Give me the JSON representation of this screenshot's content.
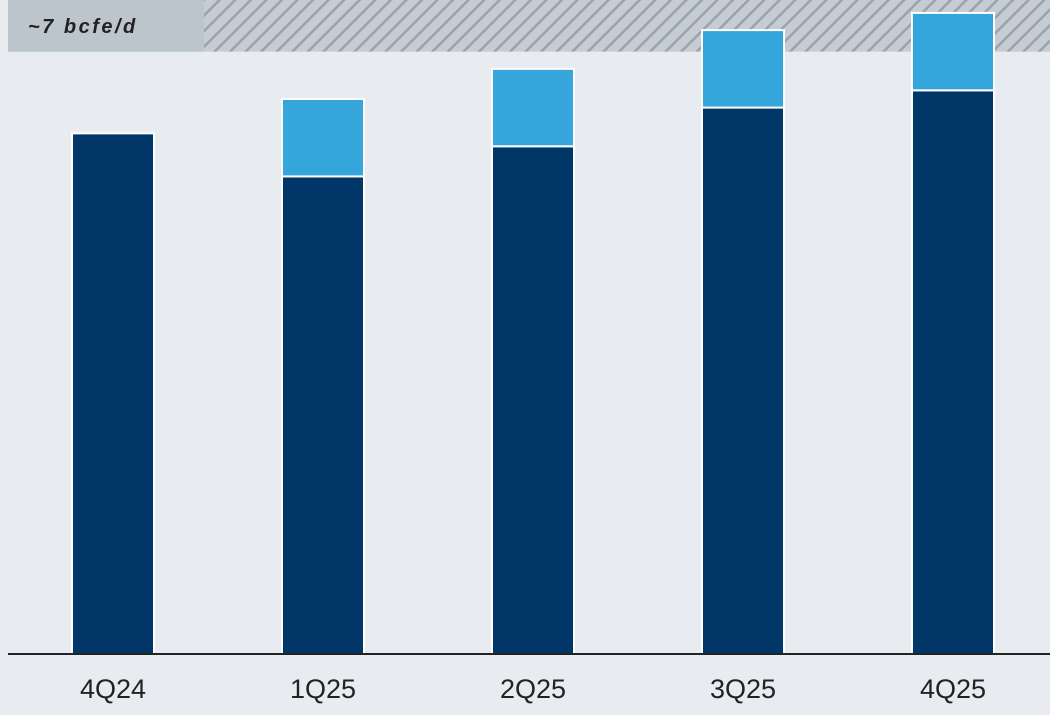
{
  "chart_data": {
    "type": "bar",
    "stacked": true,
    "categories": [
      "4Q24",
      "1Q25",
      "2Q25",
      "3Q25",
      "4Q25"
    ],
    "series": [
      {
        "values": [
          6.05,
          5.55,
          5.9,
          6.35,
          6.55
        ],
        "color": "#003768"
      },
      {
        "values": [
          0,
          0.9,
          0.9,
          0.9,
          0.9
        ],
        "color": "#35a6dc"
      }
    ],
    "annotation": {
      "label": "~7 bcfe/d",
      "band": [
        7.0,
        7.6
      ]
    },
    "ylim": [
      0,
      7.6
    ],
    "grid": false,
    "legend": "none"
  },
  "colors": {
    "background": "#e8ecf0",
    "band_fill": "#c5ccd3",
    "band_hatch": "#9aa3ab",
    "label_box": "#bcc4cc",
    "axis": "#222222",
    "text": "#222222"
  }
}
